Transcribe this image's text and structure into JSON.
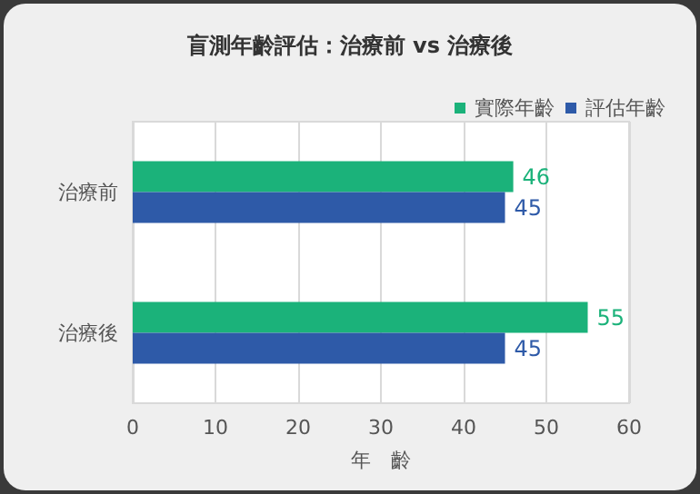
{
  "chart_data": {
    "type": "bar",
    "orientation": "horizontal",
    "title": "盲測年齡評估：治療前 vs 治療後",
    "xlabel": "年　齡",
    "categories": [
      "治療前",
      "治療後"
    ],
    "series": [
      {
        "name": "實際年齡",
        "color": "#1bb27a",
        "values": [
          46,
          55
        ]
      },
      {
        "name": "評估年齡",
        "color": "#2e5aa8",
        "values": [
          45,
          45
        ]
      }
    ],
    "xlim": [
      0,
      60
    ],
    "xticks": [
      0,
      10,
      20,
      30,
      40,
      50,
      60
    ],
    "grid": "x",
    "legend": "top right",
    "data_labels": true
  }
}
